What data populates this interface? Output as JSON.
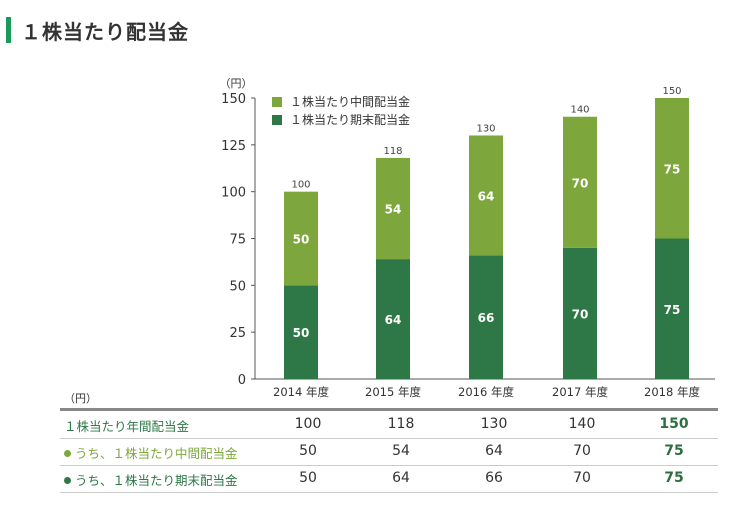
{
  "page_title": "１株当たり配当金",
  "colors": {
    "accent": "#179a5a",
    "interim": "#7da73c",
    "year_end": "#2e7847"
  },
  "chart_data": {
    "type": "bar",
    "stacked": true,
    "y_unit_label": "（円）",
    "ylim": [
      0,
      150
    ],
    "y_ticks": [
      0,
      25,
      50,
      75,
      100,
      125,
      150
    ],
    "categories": [
      "2014 年度",
      "2015 年度",
      "2016 年度",
      "2017 年度",
      "2018 年度"
    ],
    "series": [
      {
        "name": "１株当たり期末配当金",
        "color": "#2e7847",
        "values": [
          50,
          64,
          66,
          70,
          75
        ]
      },
      {
        "name": "１株当たり中間配当金",
        "color": "#7da73c",
        "values": [
          50,
          54,
          64,
          70,
          75
        ]
      }
    ],
    "totals": [
      100,
      118,
      130,
      140,
      150
    ],
    "legend_position": "top-left",
    "legend_order": [
      "１株当たり中間配当金",
      "１株当たり期末配当金"
    ]
  },
  "table": {
    "unit_label": "（円）",
    "rows": [
      {
        "label": "１株当たり年間配当金",
        "values": [
          "100",
          "118",
          "130",
          "140",
          "150"
        ],
        "color": "#2e7847",
        "dot": ""
      },
      {
        "label": "うち、１株当たり中間配当金",
        "values": [
          "50",
          "54",
          "64",
          "70",
          "75"
        ],
        "color": "#7da73c",
        "dot": "#7da73c"
      },
      {
        "label": "うち、１株当たり期末配当金",
        "values": [
          "50",
          "64",
          "66",
          "70",
          "75"
        ],
        "color": "#2e7847",
        "dot": "#2e7847"
      }
    ]
  }
}
